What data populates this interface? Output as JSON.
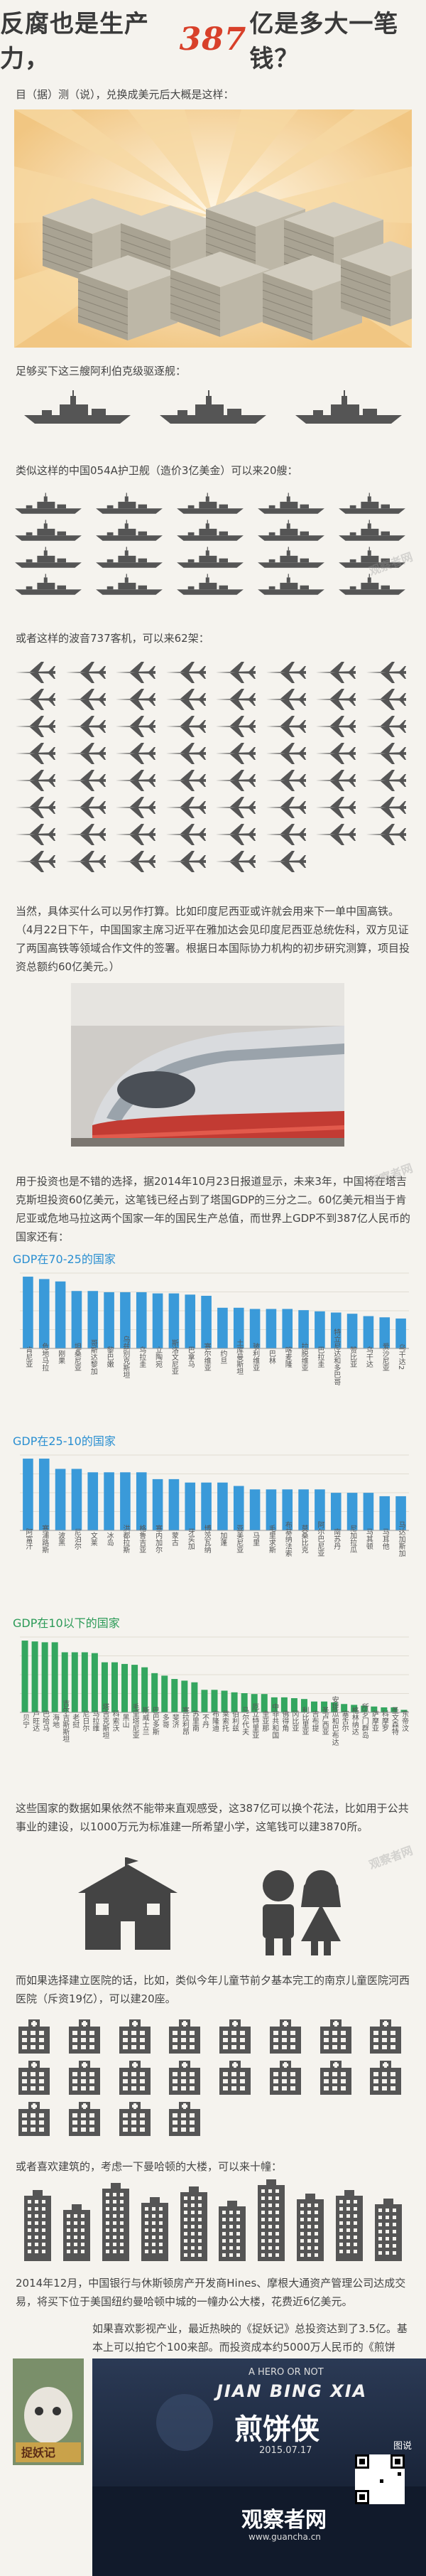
{
  "title": {
    "prefix": "反腐也是生产力，",
    "number": "387",
    "suffix": "亿是多大一笔钱？"
  },
  "intro": "目（据）测（说），兑换成美元后大概是这样：",
  "ships_text": "足够买下这三艘阿利伯克级驱逐舰：",
  "frigates_text": "类似这样的中国054A护卫舰（造价3亿美金）可以来20艘：",
  "planes_text": "或者这样的波音737客机，可以来62架：",
  "india_text": "当然，具体买什么可以另作打算。比如印度尼西亚或许就会用来下一单中国高铁。（4月22日下午，中国国家主席习近平在雅加达会见印度尼西亚总统佐科，双方见证了两国高铁等领域合作文件的签署。根据日本国际协力机构的初步研究测算，项目投资总额约60亿美元。）",
  "gdp_text": "用于投资也是不错的选择，据2014年10月23日报道显示，未来3年，中国将在塔吉克斯坦投资60亿美元，这笔钱已经占到了塔国GDP的三分之二。60亿美元相当于肯尼亚或危地马拉这两个国家一年的国民生产总值，而世界上GDP不到387亿人民币的国家还有：",
  "school_text": "这些国家的数据如果依然不能带来直观感受，这387亿可以换个花法，比如用于公共事业的建设，以1000万元为标准建一所希望小学，这笔钱可以建3870所。",
  "hospital_text": "而如果选择建立医院的话，比如，类似今年儿童节前夕基本完工的南京儿童医院河西医院（斥资19亿），可以建20座。",
  "building_text": "或者喜欢建筑的，考虑一下曼哈顿的大楼，可以来十幢：",
  "manhattan_text": "2014年12月，中国银行与休斯顿房产开发商Hines、摩根大通资产管理公司达成交易，将买下位于美国纽约曼哈顿中城的一幢办公大楼，花费近6亿美元。",
  "movie_text": "如果喜欢影视产业，最近热映的《捉妖记》总投资达到了3.5亿。基本上可以拍它个100来部。而投资成本约5000万人民币的《煎饼侠》，一天一可以拍两年多。",
  "banner": {
    "line1": "A HERO OR NOT",
    "line2": "JIAN BING XIA",
    "line3": "煎饼侠",
    "date": "2015.07.17",
    "source": "图说",
    "brand": "观察者网",
    "url": "www.guancha.cn"
  },
  "watermark": "观察者网",
  "colors": {
    "blue": "#3a9ad9",
    "green": "#34a65f",
    "red": "#d8402a"
  },
  "chart_data": [
    {
      "type": "bar",
      "title": "GDP在70-25的国家",
      "categories": [
        "肯尼亚",
        "危地马拉",
        "刚果",
        "坦桑尼亚",
        "哥斯达黎加",
        "黎巴嫩",
        "乌兹别克斯坦",
        "乌拉圭",
        "立陶宛",
        "斯洛文尼亚",
        "巴拿马",
        "塞尔维亚",
        "约旦",
        "土库曼斯坦",
        "玻利维亚",
        "巴林",
        "喀麦隆",
        "拉脱维亚",
        "巴拉圭",
        "特立尼达和多巴哥",
        "赞比亚",
        "乌干达",
        "爱沙尼亚",
        "乌干达2"
      ],
      "values": [
        60,
        58,
        56,
        48,
        48,
        47,
        47,
        47,
        46,
        46,
        45,
        44,
        34,
        34,
        33,
        33,
        33,
        32,
        31,
        30,
        29,
        27,
        26,
        25
      ]
    },
    {
      "type": "bar",
      "title": "GDP在25-10的国家",
      "categories": [
        "阿富汗",
        "塞浦路斯",
        "波黑",
        "尼泊尔",
        "文莱",
        "冰岛",
        "洪都拉斯",
        "格鲁吉亚",
        "塞内加尔",
        "蒙古",
        "牙买加",
        "博茨瓦纳",
        "加蓬",
        "亚美尼亚",
        "马里",
        "毛里求斯",
        "布基纳法索",
        "莫桑比克",
        "阿尔巴尼亚",
        "南苏丹",
        "尼加拉瓜",
        "马其顿",
        "马耳他",
        "马达加斯加"
      ],
      "values": [
        21,
        21,
        18,
        18,
        17,
        17,
        17,
        17,
        15,
        15,
        14,
        14,
        14,
        13,
        12,
        12,
        12,
        12,
        12,
        11,
        11,
        11,
        10,
        10
      ]
    },
    {
      "type": "bar",
      "title": "GDP在10以下的国家",
      "categories": [
        "贝宁",
        "卢旺达",
        "巴哈马",
        "海地",
        "吉尔吉斯斯坦",
        "老挝",
        "尼日尔",
        "马拉维",
        "塔吉克斯坦",
        "科索沃",
        "黑山",
        "毛里塔尼亚",
        "斯威士兰",
        "巴巴多斯",
        "多哥",
        "斐济",
        "塞拉利昂",
        "苏里南",
        "不丹",
        "布隆迪",
        "莱索托",
        "伯利兹",
        "马尔代夫",
        "厄立特里亚",
        "圭亚那",
        "中非共和国",
        "佛得角",
        "冈比亚",
        "利比里亚",
        "吉布提",
        "圣卢西亚",
        "安提瓜和巴布达",
        "塞舌尔",
        "格林纳达",
        "所罗门群岛",
        "萨摩亚",
        "科摩罗",
        "圣文森特",
        "东帝汶"
      ],
      "values": [
        8.6,
        8.5,
        8.4,
        8.4,
        7.2,
        7.2,
        7.2,
        7.1,
        6.0,
        6.0,
        5.8,
        5.7,
        5.4,
        4.7,
        4.4,
        4.0,
        3.8,
        3.6,
        2.7,
        2.7,
        2.6,
        2.4,
        2.3,
        2.2,
        2.2,
        1.8,
        1.8,
        1.7,
        1.6,
        1.3,
        1.3,
        1.2,
        1.0,
        0.9,
        0.8,
        0.7,
        0.6,
        0.6,
        0.3
      ]
    }
  ]
}
